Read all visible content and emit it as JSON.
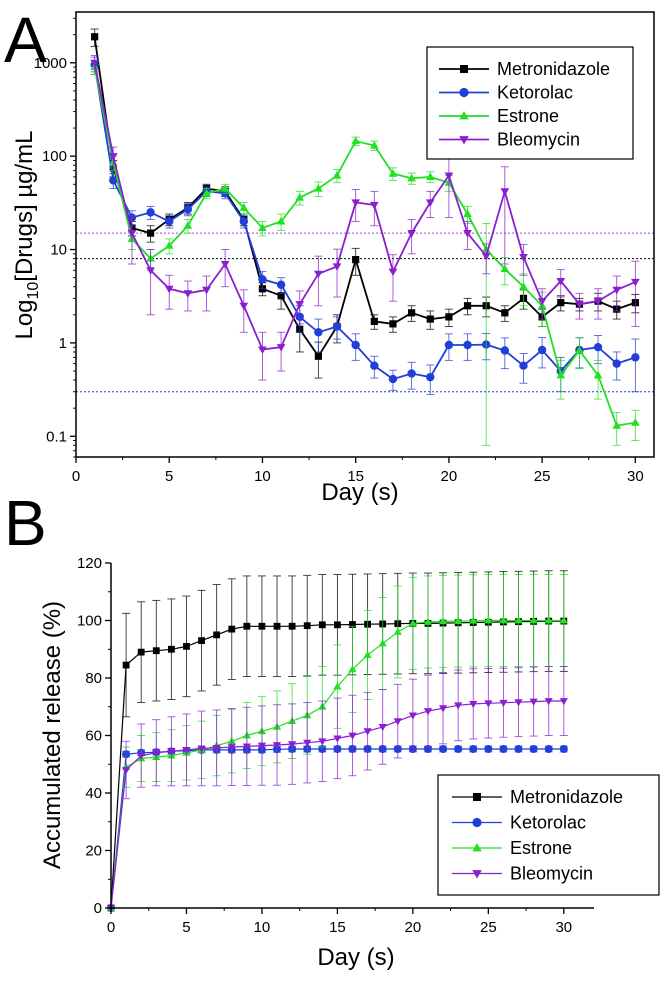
{
  "chart_data": [
    {
      "type": "line",
      "panel_label": "A",
      "scale": "log",
      "xlabel": "Day (s)",
      "ylabel": "Log10[Drugs] µg/mL",
      "ylabel_parts": {
        "pre": "Log",
        "sub": "10",
        "post": "[Drugs] µg/mL"
      },
      "xlim": [
        0,
        31
      ],
      "ylim": [
        0.06,
        3500
      ],
      "xticks": [
        0,
        5,
        10,
        15,
        20,
        25,
        30
      ],
      "yticks": [
        0.1,
        1,
        10,
        100,
        1000
      ],
      "ytick_labels": [
        "0.1",
        "1",
        "10",
        "100",
        "1000"
      ],
      "legend_position": "top-right",
      "reference_lines": [
        {
          "y": 15,
          "color": "#b040d0",
          "style": "dotted"
        },
        {
          "y": 8,
          "color": "#000000",
          "style": "dotted"
        },
        {
          "y": 0.3,
          "color": "#1f3fd8",
          "style": "dotted"
        }
      ],
      "x": [
        1,
        2,
        3,
        4,
        5,
        6,
        7,
        8,
        9,
        10,
        11,
        12,
        13,
        14,
        15,
        16,
        17,
        18,
        19,
        20,
        21,
        22,
        23,
        24,
        25,
        26,
        27,
        28,
        29,
        30
      ],
      "series": [
        {
          "name": "Metronidazole",
          "color": "#000000",
          "marker": "square",
          "values": [
            1900,
            75,
            17,
            15,
            21,
            28,
            45,
            42,
            21,
            3.8,
            3.2,
            1.4,
            0.72,
            1.5,
            7.8,
            1.7,
            1.6,
            2.1,
            1.8,
            1.9,
            2.5,
            2.5,
            2.1,
            3.0,
            1.9,
            2.7,
            2.6,
            2.8,
            2.3,
            2.7
          ],
          "errors": [
            400,
            15,
            3,
            3,
            3,
            4,
            5,
            5,
            3,
            0.6,
            0.9,
            0.6,
            0.3,
            0.5,
            2.5,
            0.3,
            0.3,
            0.4,
            0.4,
            0.4,
            0.5,
            0.6,
            0.4,
            0.7,
            0.4,
            0.5,
            0.4,
            0.6,
            0.5,
            0.6
          ]
        },
        {
          "name": "Ketorolac",
          "color": "#1f3fd8",
          "marker": "circle",
          "values": [
            950,
            55,
            22,
            25,
            20,
            27,
            42,
            40,
            20,
            4.8,
            4.2,
            1.9,
            1.3,
            1.5,
            0.95,
            0.57,
            0.41,
            0.47,
            0.43,
            0.95,
            0.95,
            0.96,
            0.83,
            0.57,
            0.84,
            0.5,
            0.84,
            0.9,
            0.6,
            0.7
          ],
          "errors": [
            200,
            10,
            4,
            4,
            3,
            4,
            5,
            5,
            3,
            1.0,
            0.8,
            0.6,
            0.5,
            0.4,
            0.3,
            0.15,
            0.1,
            0.15,
            0.15,
            0.3,
            0.3,
            0.3,
            0.3,
            0.2,
            0.3,
            0.2,
            0.3,
            0.3,
            0.2,
            0.4
          ]
        },
        {
          "name": "Estrone",
          "color": "#22e022",
          "marker": "triangle-up",
          "values": [
            900,
            85,
            13,
            8,
            11,
            18,
            40,
            45,
            28,
            17,
            20,
            36,
            45,
            62,
            145,
            130,
            65,
            58,
            60,
            52,
            24,
            10,
            6.2,
            4.0,
            2.5,
            0.45,
            0.83,
            0.45,
            0.13,
            0.14
          ],
          "errors": [
            150,
            15,
            3,
            2,
            2,
            3,
            5,
            5,
            4,
            3,
            4,
            6,
            8,
            10,
            15,
            15,
            10,
            8,
            8,
            10,
            5,
            4,
            2,
            1.5,
            1.0,
            0.2,
            0.3,
            0.2,
            0.05,
            0.05
          ],
          "error_bands": {
            "22": [
              0.08,
              19
            ]
          }
        },
        {
          "name": "Bleomycin",
          "color": "#8a1fd0",
          "marker": "triangle-down",
          "values": [
            1000,
            100,
            15,
            6,
            3.8,
            3.4,
            3.7,
            7,
            2.5,
            0.85,
            0.9,
            2.6,
            5.5,
            6.6,
            32,
            30,
            5.8,
            15,
            32,
            62,
            15,
            8.5,
            42,
            8.3,
            2.8,
            4.6,
            2.6,
            2.8,
            3.7,
            4.5
          ],
          "errors": [
            200,
            25,
            8,
            4,
            1.5,
            1.2,
            1.5,
            3,
            1.2,
            0.45,
            0.4,
            1.0,
            3.0,
            3.5,
            12,
            12,
            3,
            6,
            10,
            40,
            5,
            3,
            35,
            3,
            1.0,
            1.5,
            0.8,
            1.0,
            1.5,
            3.0
          ]
        }
      ]
    },
    {
      "type": "line",
      "panel_label": "B",
      "scale": "linear",
      "xlabel": "Day (s)",
      "ylabel": "Accumulated release (%)",
      "xlim": [
        0,
        32
      ],
      "ylim": [
        0,
        120
      ],
      "xticks": [
        0,
        5,
        10,
        15,
        20,
        25,
        30
      ],
      "yticks": [
        0,
        20,
        40,
        60,
        80,
        100,
        120
      ],
      "legend_position": "bottom-right",
      "x": [
        0,
        1,
        2,
        3,
        4,
        5,
        6,
        7,
        8,
        9,
        10,
        11,
        12,
        13,
        14,
        15,
        16,
        17,
        18,
        19,
        20,
        21,
        22,
        23,
        24,
        25,
        26,
        27,
        28,
        29,
        30
      ],
      "series": [
        {
          "name": "Metronidazole",
          "color": "#000000",
          "marker": "square",
          "values": [
            0,
            84.5,
            89,
            89.5,
            90,
            91,
            93,
            95,
            97,
            98,
            98,
            98,
            98,
            98.2,
            98.5,
            98.5,
            98.6,
            98.7,
            98.8,
            98.9,
            99,
            99,
            99.1,
            99.2,
            99.3,
            99.4,
            99.5,
            99.6,
            99.7,
            99.8,
            99.8
          ],
          "errors": [
            0,
            18,
            17.5,
            17.5,
            17.5,
            17.5,
            17.5,
            17.5,
            17.5,
            17.5,
            17.5,
            17.5,
            17.5,
            17.5,
            17.5,
            17.5,
            17.5,
            17.5,
            17.5,
            17.5,
            17.5,
            17.5,
            17.5,
            17.5,
            17.5,
            17.5,
            17.5,
            17.5,
            17.5,
            17.5,
            17.5
          ]
        },
        {
          "name": "Ketorolac",
          "color": "#1f3fd8",
          "marker": "circle",
          "values": [
            0,
            53.5,
            54,
            54.2,
            54.5,
            54.7,
            55,
            55,
            55,
            55,
            55,
            55.2,
            55.3,
            55.3,
            55.3,
            55.3,
            55.3,
            55.3,
            55.3,
            55.3,
            55.3,
            55.3,
            55.3,
            55.3,
            55.3,
            55.3,
            55.3,
            55.3,
            55.3,
            55.3,
            55.3
          ],
          "errors": [
            0,
            1,
            1,
            1,
            1,
            1,
            1,
            1,
            1,
            1,
            1,
            1,
            1,
            1,
            1,
            1,
            1,
            1,
            1,
            1,
            1,
            1,
            1,
            1,
            1,
            1,
            1,
            1,
            1,
            1,
            1
          ]
        },
        {
          "name": "Estrone",
          "color": "#22e022",
          "marker": "triangle-up",
          "values": [
            0,
            49,
            52,
            52.5,
            53,
            54,
            55,
            56.5,
            58,
            60,
            61.5,
            63,
            65,
            67,
            70,
            77,
            83,
            88,
            92,
            96,
            99,
            99.5,
            99.7,
            99.8,
            99.9,
            100,
            100,
            100,
            100,
            100,
            100
          ],
          "errors": [
            0,
            7,
            8,
            8.5,
            9,
            9.5,
            10,
            10.5,
            11,
            11.5,
            12,
            12.5,
            13,
            13.5,
            14,
            14.5,
            15,
            15.5,
            16,
            16,
            16,
            16,
            16,
            16,
            16,
            16,
            16,
            16,
            16,
            16,
            16
          ]
        },
        {
          "name": "Bleomycin",
          "color": "#8a1fd0",
          "marker": "triangle-down",
          "values": [
            0,
            48,
            53,
            54,
            54.5,
            55,
            55.5,
            55.7,
            56,
            56.2,
            56.5,
            56.7,
            57,
            57.5,
            58,
            59,
            60,
            61.5,
            63,
            65,
            67,
            68.5,
            69.5,
            70.5,
            71,
            71.2,
            71.4,
            71.6,
            71.8,
            72,
            72
          ],
          "errors": [
            0,
            10,
            11,
            11.5,
            12,
            12.5,
            13,
            13.2,
            13.4,
            13.6,
            13.8,
            14,
            14,
            14,
            14,
            14,
            14,
            13.5,
            13,
            12.8,
            12.6,
            12.5,
            12.4,
            12.3,
            12.2,
            12.1,
            12,
            12,
            12,
            12,
            12
          ]
        }
      ]
    }
  ]
}
